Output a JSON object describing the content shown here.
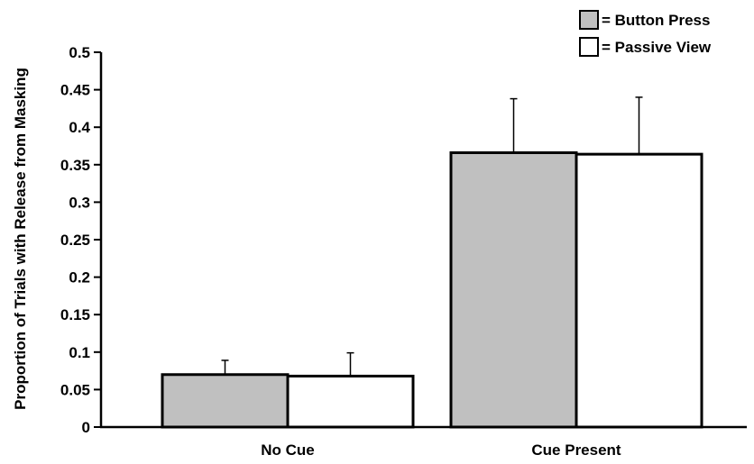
{
  "chart_data": {
    "type": "bar",
    "title": "",
    "xlabel": "",
    "ylabel": "Proportion of Trials with Release from Masking",
    "ylim": [
      0,
      0.5
    ],
    "yticks": [
      "0",
      "0.05",
      "0.1",
      "0.15",
      "0.2",
      "0.25",
      "0.3",
      "0.35",
      "0.4",
      "0.45",
      "0.5"
    ],
    "categories": [
      "No Cue",
      "Cue Present"
    ],
    "series": [
      {
        "name": "= Button Press",
        "color": "#c0c0c0",
        "values": [
          0.07,
          0.366
        ],
        "error": [
          0.019,
          0.072
        ]
      },
      {
        "name": "= Passive View",
        "color": "#ffffff",
        "values": [
          0.068,
          0.364
        ],
        "error": [
          0.031,
          0.076
        ]
      }
    ],
    "legend_position": "top-right",
    "grid": false
  }
}
